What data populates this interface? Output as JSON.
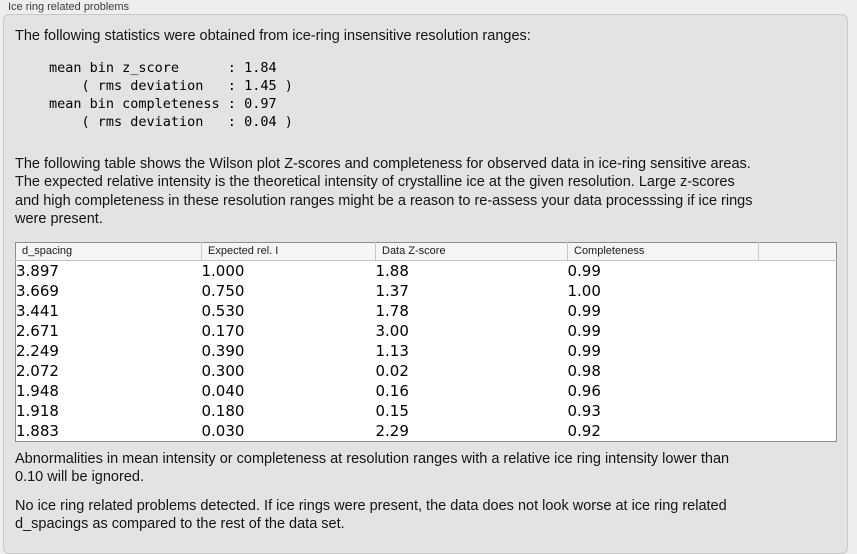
{
  "section": {
    "title": "Ice ring related problems"
  },
  "intro": {
    "text": "The following statistics were obtained from ice-ring insensitive resolution ranges:"
  },
  "stats": {
    "block": "mean bin z_score      : 1.84\n    ( rms deviation   : 1.45 )\nmean bin completeness : 0.97\n    ( rms deviation   : 0.04 )"
  },
  "description": {
    "text": "The following table shows the Wilson plot Z-scores and completeness for observed data in ice-ring sensitive areas.\nThe expected relative intensity is the theoretical intensity of crystalline ice at the given resolution. Large z-scores\nand high completeness in these resolution ranges might be a reason to re-assess your data processsing if ice rings\nwere present."
  },
  "table": {
    "columns": [
      "d_spacing",
      "Expected rel. I",
      "Data Z-score",
      "Completeness",
      ""
    ],
    "rows": [
      [
        "3.897",
        "1.000",
        "1.88",
        "0.99"
      ],
      [
        "3.669",
        "0.750",
        "1.37",
        "1.00"
      ],
      [
        "3.441",
        "0.530",
        "1.78",
        "0.99"
      ],
      [
        "2.671",
        "0.170",
        "3.00",
        "0.99"
      ],
      [
        "2.249",
        "0.390",
        "1.13",
        "0.99"
      ],
      [
        "2.072",
        "0.300",
        "0.02",
        "0.98"
      ],
      [
        "1.948",
        "0.040",
        "0.16",
        "0.96"
      ],
      [
        "1.918",
        "0.180",
        "0.15",
        "0.93"
      ],
      [
        "1.883",
        "0.030",
        "2.29",
        "0.92"
      ]
    ]
  },
  "notes": {
    "ignore": "Abnormalities in mean intensity or completeness at resolution ranges with a relative ice ring intensity lower than\n0.10 will be ignored.",
    "conclusion": "No ice ring related problems detected. If ice rings were present, the data does not look worse at ice ring related\nd_spacings as compared to the rest of the data set."
  },
  "colors": {
    "page_bg": "#eeeeee",
    "panel_bg": "#e3e3e3",
    "table_border": "#8e8e8e",
    "table_header_bg": "#f5f5f5"
  }
}
